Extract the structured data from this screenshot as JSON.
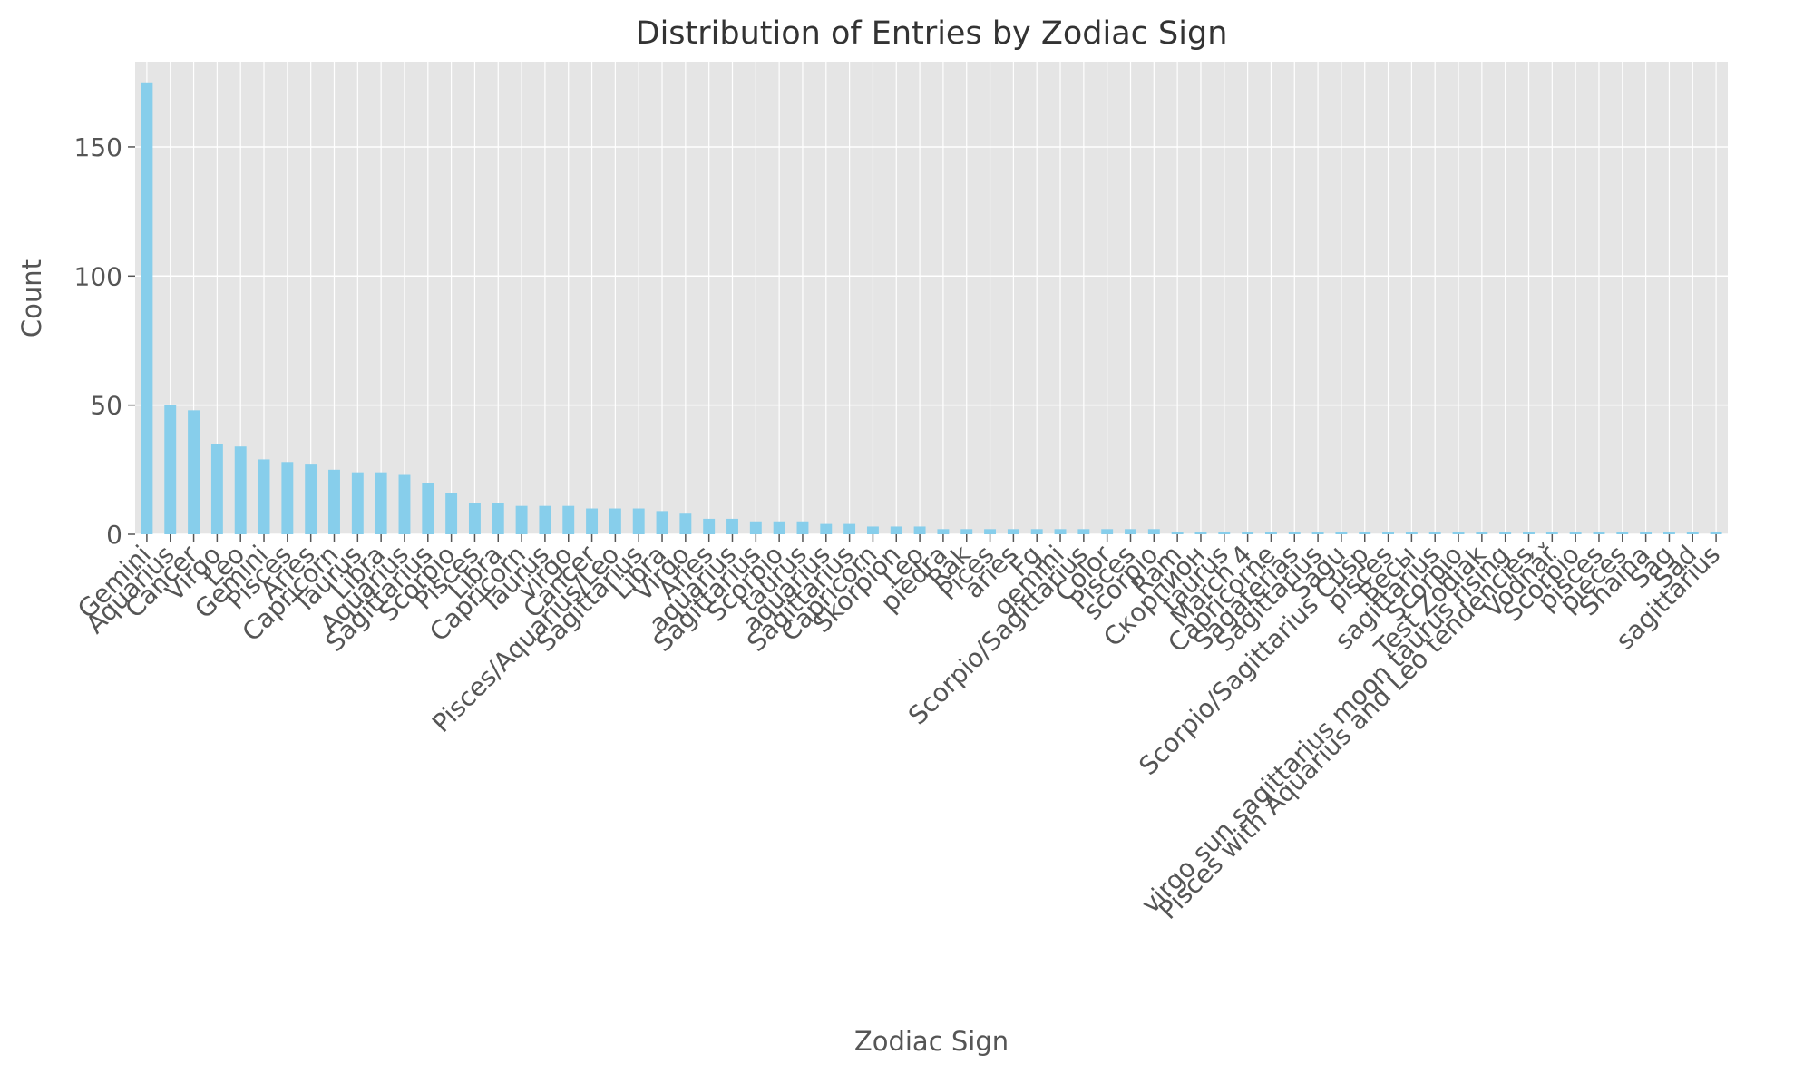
{
  "chart_data": {
    "type": "bar",
    "title": "Distribution of Entries by Zodiac Sign",
    "xlabel": "Zodiac Sign",
    "ylabel": "Count",
    "ylim": [
      0,
      183
    ],
    "yticks": [
      0,
      50,
      100,
      150
    ],
    "grid": true,
    "legend": "none",
    "bar_color": "#87CEEB",
    "background_color": "#E5E5E5",
    "categories": [
      "Gemini",
      "Aquarius",
      "Cancer",
      "Virgo",
      "Leo",
      "Gemini",
      "Pisces",
      "Aries",
      "Capricorn",
      "Taurus",
      "Libra",
      "Aquarius",
      "Sagittarius",
      "Scorpio",
      "Pisces",
      "Libra",
      "Capricorn",
      "Taurus",
      "virgo",
      "Cancer",
      "Pisces/Aquarius/Leo",
      "Sagittarius",
      "Libra",
      "Virgo",
      "Aries",
      "aquarius",
      "Sagittarius",
      "Scorpio",
      "taurus",
      "aquarius",
      "Sagittarius",
      "Capricorn",
      "Skorpion",
      "Leo",
      "piedra",
      "Rak",
      "Pices",
      "aries",
      "Fg",
      "gemini",
      "Scorpio/Sagittarius",
      "Color",
      "Pisces",
      "scorpio",
      "Ram",
      "Скорпион",
      "taurus",
      "March 4",
      "Capricorne",
      "Sagaterias",
      "Sagittarius",
      "Sagu",
      "Scorpio/Sagittarius Cusp",
      "pisces",
      "Весы",
      "sagittarius",
      "Scorpio",
      "Test Zodiak",
      "virgo sun sagittarius moon taurus rising",
      "Pisces with Aquarius and Leo tendencies",
      "Vodnář",
      "Scorpio",
      "pisces",
      "pieces",
      "Shaina",
      "Sag",
      "Sad",
      "sagittarius"
    ],
    "values": [
      175,
      50,
      48,
      35,
      34,
      29,
      28,
      27,
      25,
      24,
      24,
      23,
      20,
      16,
      12,
      12,
      11,
      11,
      11,
      10,
      10,
      10,
      9,
      8,
      6,
      6,
      5,
      5,
      5,
      4,
      4,
      3,
      3,
      3,
      2,
      2,
      2,
      2,
      2,
      2,
      2,
      2,
      2,
      2,
      1,
      1,
      1,
      1,
      1,
      1,
      1,
      1,
      1,
      1,
      1,
      1,
      1,
      1,
      1,
      1,
      1,
      1,
      1,
      1,
      1,
      1,
      1,
      1
    ]
  }
}
